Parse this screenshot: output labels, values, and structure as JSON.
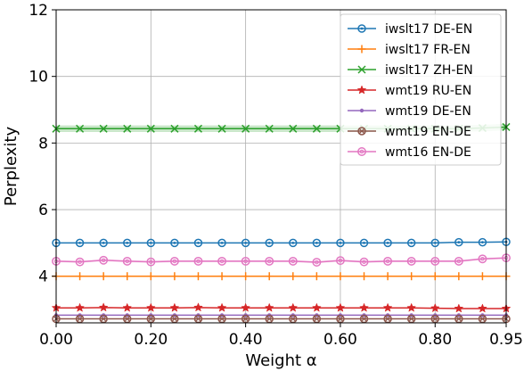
{
  "chart_data": {
    "type": "line",
    "xlabel": "Weight α",
    "ylabel": "Perplexity",
    "xlim": [
      0.0,
      0.95
    ],
    "ylim": [
      2.6,
      12.0
    ],
    "x_ticks": [
      "0.00",
      "0.20",
      "0.40",
      "0.60",
      "0.80",
      "0.95"
    ],
    "x_tick_values": [
      0.0,
      0.2,
      0.4,
      0.6,
      0.8,
      0.95
    ],
    "y_ticks": [
      "4",
      "6",
      "8",
      "10",
      "12"
    ],
    "y_tick_values": [
      4,
      6,
      8,
      10,
      12
    ],
    "grid": true,
    "legend_position": "top-right",
    "x": [
      0.0,
      0.05,
      0.1,
      0.15,
      0.2,
      0.25,
      0.3,
      0.35,
      0.4,
      0.45,
      0.5,
      0.55,
      0.6,
      0.65,
      0.7,
      0.75,
      0.8,
      0.85,
      0.9,
      0.95
    ],
    "series": [
      {
        "name": "iwslt17 DE-EN",
        "color": "#1f77b4",
        "marker": "circle-dot",
        "values": [
          5.0,
          5.0,
          5.0,
          5.0,
          5.0,
          5.0,
          5.0,
          5.0,
          5.0,
          5.0,
          5.0,
          5.0,
          5.0,
          5.0,
          5.0,
          5.0,
          5.0,
          5.02,
          5.02,
          5.03
        ]
      },
      {
        "name": "iwslt17 FR-EN",
        "color": "#ff7f0e",
        "marker": "plus",
        "values": [
          4.0,
          4.0,
          4.0,
          4.0,
          4.0,
          4.0,
          4.0,
          4.0,
          4.0,
          4.0,
          4.0,
          4.0,
          4.0,
          4.0,
          4.0,
          4.0,
          4.0,
          4.0,
          4.0,
          4.0
        ]
      },
      {
        "name": "iwslt17 ZH-EN",
        "color": "#2ca02c",
        "marker": "x",
        "band": 0.1,
        "values": [
          8.43,
          8.43,
          8.43,
          8.43,
          8.43,
          8.43,
          8.43,
          8.43,
          8.43,
          8.43,
          8.43,
          8.43,
          8.43,
          8.43,
          8.43,
          8.43,
          8.43,
          8.43,
          8.45,
          8.48
        ]
      },
      {
        "name": "wmt19 RU-EN",
        "color": "#d62728",
        "marker": "star",
        "values": [
          3.05,
          3.05,
          3.06,
          3.05,
          3.05,
          3.05,
          3.06,
          3.05,
          3.05,
          3.05,
          3.05,
          3.05,
          3.05,
          3.05,
          3.05,
          3.05,
          3.04,
          3.03,
          3.03,
          3.03
        ]
      },
      {
        "name": "wmt19 DE-EN",
        "color": "#9467bd",
        "marker": "dot",
        "values": [
          2.83,
          2.83,
          2.83,
          2.83,
          2.83,
          2.83,
          2.83,
          2.83,
          2.83,
          2.83,
          2.83,
          2.83,
          2.83,
          2.83,
          2.83,
          2.83,
          2.83,
          2.83,
          2.83,
          2.83
        ]
      },
      {
        "name": "wmt19 EN-DE",
        "color": "#8c564b",
        "marker": "circle-x",
        "values": [
          2.72,
          2.72,
          2.72,
          2.72,
          2.72,
          2.72,
          2.72,
          2.72,
          2.72,
          2.72,
          2.72,
          2.72,
          2.72,
          2.72,
          2.72,
          2.72,
          2.72,
          2.72,
          2.72,
          2.72
        ]
      },
      {
        "name": "wmt16 EN-DE",
        "color": "#e377c2",
        "marker": "circle-o",
        "band": 0.03,
        "values": [
          4.45,
          4.43,
          4.48,
          4.45,
          4.43,
          4.45,
          4.45,
          4.45,
          4.45,
          4.45,
          4.45,
          4.42,
          4.47,
          4.43,
          4.45,
          4.45,
          4.45,
          4.45,
          4.52,
          4.55
        ]
      }
    ]
  }
}
